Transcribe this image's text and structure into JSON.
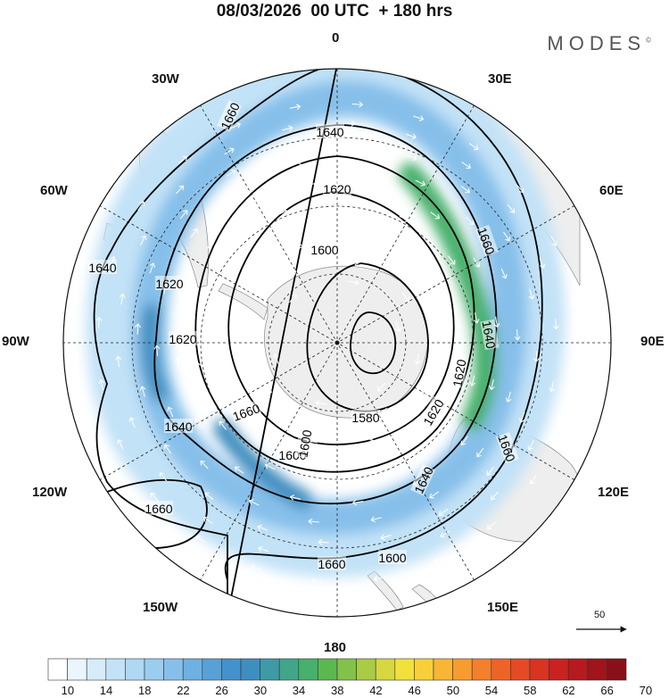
{
  "title": "08/03/2026  00 UTC  + 180 hrs",
  "brand": "MODES",
  "brand_mark": "©",
  "longitude_labels": {
    "top": "0",
    "e30": "30E",
    "e60": "60E",
    "e90": "90E",
    "e120": "120E",
    "e150": "150E",
    "bottom": "180",
    "w150": "150W",
    "w120": "120W",
    "w90": "90W",
    "w60": "60W",
    "w30": "30W"
  },
  "contour_labels": [
    {
      "text": "1660",
      "angle": -65
    },
    {
      "text": "1640",
      "angle": 0
    },
    {
      "text": "1620",
      "angle": 0
    },
    {
      "text": "1600",
      "angle": 0
    },
    {
      "text": "1660",
      "angle": 70
    },
    {
      "text": "1640",
      "angle": 80
    },
    {
      "text": "1620",
      "angle": -80
    },
    {
      "text": "1600",
      "angle": 0
    },
    {
      "text": "1640",
      "angle": 0
    },
    {
      "text": "1620",
      "angle": 0
    },
    {
      "text": "1580",
      "angle": 0
    },
    {
      "text": "1640",
      "angle": 0
    },
    {
      "text": "1620",
      "angle": 0
    },
    {
      "text": "1660",
      "angle": 0
    },
    {
      "text": "1600",
      "angle": 0
    },
    {
      "text": "1660",
      "angle": 0
    },
    {
      "text": "1660",
      "angle": -20
    },
    {
      "text": "1640",
      "angle": -65
    },
    {
      "text": "1620",
      "angle": -60
    },
    {
      "text": "1600",
      "angle": -80
    },
    {
      "text": "1660",
      "angle": 70
    }
  ],
  "vector_reference": "50",
  "colorbar": {
    "labels": [
      "10",
      "14",
      "18",
      "22",
      "26",
      "30",
      "34",
      "38",
      "42",
      "46",
      "50",
      "54",
      "58",
      "62",
      "66",
      "70"
    ],
    "colors": [
      "#ffffff",
      "#eaf5fd",
      "#d6ecfa",
      "#c2e2f7",
      "#aed8f3",
      "#9acdef",
      "#86c0ea",
      "#6eb1e2",
      "#57a1d8",
      "#4492cd",
      "#3f8ec0",
      "#3f9aa6",
      "#41a689",
      "#47b06c",
      "#5bb84f",
      "#82c14a",
      "#aacb46",
      "#d6d741",
      "#f2e03d",
      "#f8cf39",
      "#f9b634",
      "#f89c30",
      "#f4802c",
      "#ee6428",
      "#e54a25",
      "#d93322",
      "#c92220",
      "#b61a1e",
      "#a0141c",
      "#8a0f19"
    ]
  }
}
